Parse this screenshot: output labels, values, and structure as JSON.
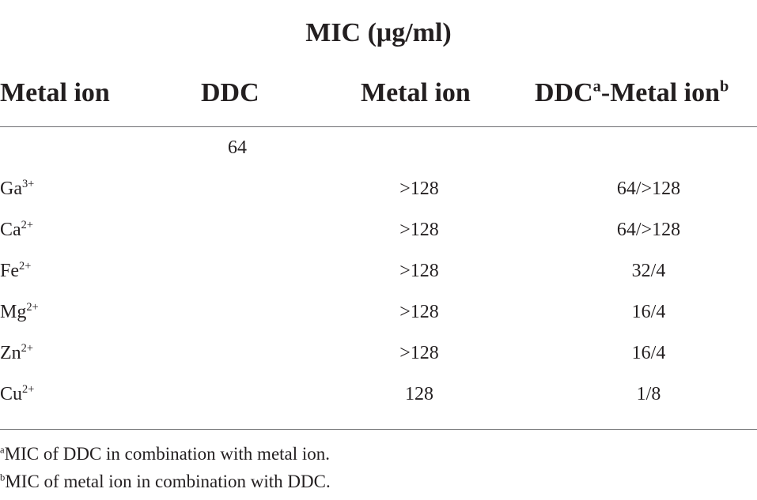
{
  "table": {
    "super_header": "MIC (μg/ml)",
    "headers": {
      "metal_ion": "Metal ion",
      "ddc": "DDC",
      "metal_ion_mic": "Metal ion",
      "combo_left": "DDC",
      "combo_sup_a": "a",
      "combo_mid": "-Metal ion",
      "combo_sup_b": "b"
    },
    "rows": [
      {
        "ion": "",
        "charge": "",
        "ddc": "64",
        "metal": "",
        "combo": ""
      },
      {
        "ion": "Ga",
        "charge": "3+",
        "ddc": "",
        "metal": ">128",
        "combo": "64/>128"
      },
      {
        "ion": "Ca",
        "charge": "2+",
        "ddc": "",
        "metal": ">128",
        "combo": "64/>128"
      },
      {
        "ion": "Fe",
        "charge": "2+",
        "ddc": "",
        "metal": ">128",
        "combo": "32/4"
      },
      {
        "ion": "Mg",
        "charge": "2+",
        "ddc": "",
        "metal": ">128",
        "combo": "16/4"
      },
      {
        "ion": "Zn",
        "charge": "2+",
        "ddc": "",
        "metal": ">128",
        "combo": "16/4"
      },
      {
        "ion": "Cu",
        "charge": "2+",
        "ddc": "",
        "metal": "128",
        "combo": "1/8"
      }
    ]
  },
  "footnotes": [
    {
      "mark": "a",
      "text": "MIC of DDC in combination with metal ion."
    },
    {
      "mark": "b",
      "text": "MIC of metal ion in combination with DDC."
    }
  ]
}
